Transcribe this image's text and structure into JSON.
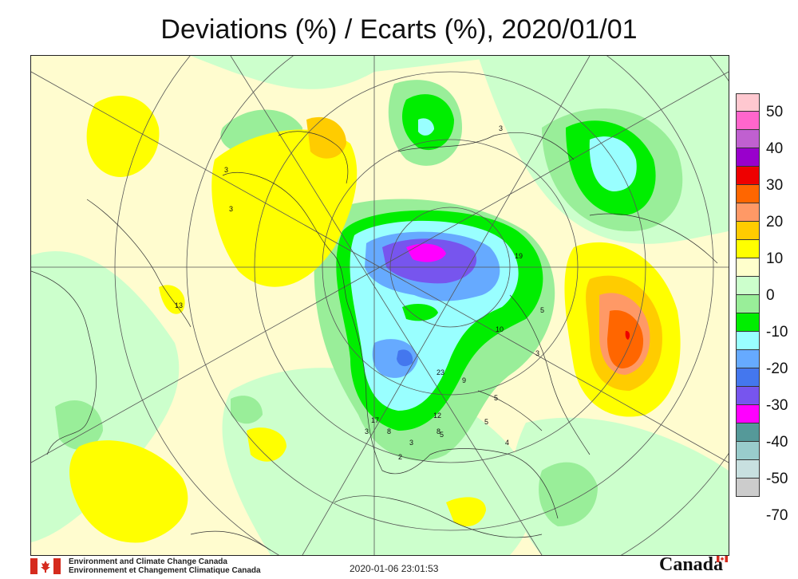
{
  "title": "Deviations (%) / Ecarts (%), 2020/01/01",
  "legend": {
    "colors": [
      "#ffc8d0",
      "#ff66cc",
      "#c060d0",
      "#9900cc",
      "#ee0000",
      "#ff6600",
      "#ff9966",
      "#ffcc00",
      "#ffff00",
      "#ffffcc",
      "#ccffcc",
      "#99ee99",
      "#00ee00",
      "#99ffff",
      "#66aaff",
      "#4477ee",
      "#7755ee",
      "#ff00ff",
      "#559999",
      "#99cccc",
      "#c8e0e0",
      "#cccccc"
    ],
    "labels": [
      "50",
      "40",
      "30",
      "20",
      "10",
      "0",
      "-10",
      "-20",
      "-30",
      "-40",
      "-50",
      "-70"
    ]
  },
  "stations": [
    "3",
    "3",
    "13",
    "19",
    "5",
    "10",
    "3",
    "23",
    "9",
    "5",
    "12",
    "5",
    "8",
    "3",
    "2",
    "17",
    "3",
    "8",
    "5",
    "4"
  ],
  "footer": {
    "org_en": "Environment and Climate Change Canada",
    "org_fr": "Environnement et Changement Climatique Canada",
    "timestamp": "2020-01-06 23:01:53",
    "wordmark": "Canada"
  }
}
